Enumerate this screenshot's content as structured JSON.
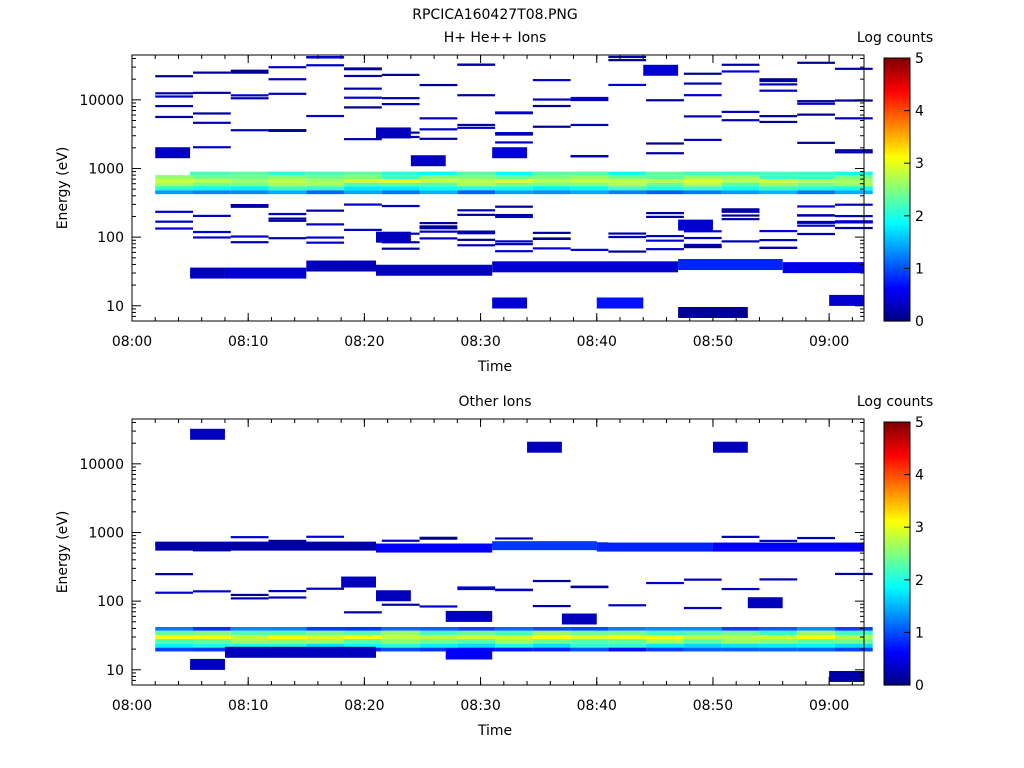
{
  "figure": {
    "title": "RPCICA160427T08.PNG"
  },
  "colorbar": {
    "label": "Log counts",
    "ticks": [
      "0",
      "1",
      "2",
      "3",
      "4",
      "5"
    ],
    "range": [
      0,
      5
    ],
    "colormap": "jet"
  },
  "chart_data": [
    {
      "type": "heatmap",
      "title": "H+ He++ Ions",
      "xlabel": "Time",
      "ylabel": "Energy (eV)",
      "x_ticks": [
        "08:00",
        "08:10",
        "08:20",
        "08:30",
        "08:40",
        "08:50",
        "09:00"
      ],
      "xlim": [
        "08:00",
        "09:03"
      ],
      "y_ticks": [
        "10",
        "100",
        "1000",
        "10000"
      ],
      "ylim": [
        6,
        45000
      ],
      "yscale": "log",
      "colorbar_label": "Log counts",
      "cells": [
        {
          "t0": "08:05",
          "t1": "08:08",
          "e": 30,
          "v": 0.3
        },
        {
          "t0": "08:08",
          "t1": "08:15",
          "e": 30,
          "v": 0.4
        },
        {
          "t0": "08:15",
          "t1": "08:21",
          "e": 38,
          "v": 0.3
        },
        {
          "t0": "08:21",
          "t1": "08:31",
          "e": 33,
          "v": 0.3
        },
        {
          "t0": "08:31",
          "t1": "08:47",
          "e": 37,
          "v": 0.4
        },
        {
          "t0": "08:47",
          "t1": "08:56",
          "e": 40,
          "v": 0.8
        },
        {
          "t0": "08:56",
          "t1": "09:03",
          "e": 36,
          "v": 0.5
        },
        {
          "t0": "08:31",
          "t1": "08:34",
          "e": 11,
          "v": 0.4
        },
        {
          "t0": "08:40",
          "t1": "08:44",
          "e": 11,
          "v": 0.7
        },
        {
          "t0": "08:47",
          "t1": "08:53",
          "e": 8,
          "v": 0.1
        },
        {
          "t0": "09:00",
          "t1": "09:03",
          "e": 12,
          "v": 0.4
        },
        {
          "t0": "08:02",
          "t1": "08:05",
          "e": 1700,
          "v": 0.3
        },
        {
          "t0": "08:21",
          "t1": "08:24",
          "e": 3300,
          "v": 0.3
        },
        {
          "t0": "08:31",
          "t1": "08:34",
          "e": 1700,
          "v": 0.4
        },
        {
          "t0": "08:44",
          "t1": "08:47",
          "e": 27000,
          "v": 0.4
        },
        {
          "t0": "08:47",
          "t1": "08:50",
          "e": 150,
          "v": 0.4
        },
        {
          "t0": "08:21",
          "t1": "08:24",
          "e": 100,
          "v": 0.3
        },
        {
          "t0": "08:24",
          "t1": "08:27",
          "e": 1300,
          "v": 0.3
        }
      ],
      "band": [
        {
          "e": 900,
          "v": 2.1
        },
        {
          "e": 800,
          "v": 2.4
        },
        {
          "e": 700,
          "v": 2.8
        },
        {
          "e": 620,
          "v": 2.5
        },
        {
          "e": 550,
          "v": 2.0
        },
        {
          "e": 480,
          "v": 1.3
        }
      ]
    },
    {
      "type": "heatmap",
      "title": "Other Ions",
      "xlabel": "Time",
      "ylabel": "Energy (eV)",
      "x_ticks": [
        "08:00",
        "08:10",
        "08:20",
        "08:30",
        "08:40",
        "08:50",
        "09:00"
      ],
      "xlim": [
        "08:00",
        "09:03"
      ],
      "y_ticks": [
        "10",
        "100",
        "1000",
        "10000"
      ],
      "ylim": [
        6,
        45000
      ],
      "yscale": "log",
      "colorbar_label": "Log counts",
      "cells": [
        {
          "t0": "08:05",
          "t1": "08:08",
          "e": 12,
          "v": 0.3
        },
        {
          "t0": "08:08",
          "t1": "08:21",
          "e": 18,
          "v": 0.3
        },
        {
          "t0": "08:27",
          "t1": "08:31",
          "e": 17,
          "v": 0.6
        },
        {
          "t0": "09:00",
          "t1": "09:03",
          "e": 8,
          "v": 0.2
        },
        {
          "t0": "08:21",
          "t1": "08:24",
          "e": 120,
          "v": 0.3
        },
        {
          "t0": "08:27",
          "t1": "08:31",
          "e": 60,
          "v": 0.3
        },
        {
          "t0": "08:37",
          "t1": "08:40",
          "e": 55,
          "v": 0.3
        },
        {
          "t0": "08:53",
          "t1": "08:56",
          "e": 95,
          "v": 0.3
        },
        {
          "t0": "08:18",
          "t1": "08:21",
          "e": 190,
          "v": 0.3
        },
        {
          "t0": "08:05",
          "t1": "08:08",
          "e": 27000,
          "v": 0.3
        },
        {
          "t0": "08:34",
          "t1": "08:37",
          "e": 17500,
          "v": 0.3
        },
        {
          "t0": "08:50",
          "t1": "08:53",
          "e": 17500,
          "v": 0.3
        }
      ],
      "upper_band": [
        {
          "t0": "08:02",
          "t1": "08:21",
          "e": 640,
          "v": 0.2
        },
        {
          "t0": "08:21",
          "t1": "08:31",
          "e": 600,
          "v": 0.6
        },
        {
          "t0": "08:31",
          "t1": "08:40",
          "e": 650,
          "v": 0.9
        },
        {
          "t0": "08:40",
          "t1": "08:50",
          "e": 620,
          "v": 0.8
        },
        {
          "t0": "08:50",
          "t1": "09:03",
          "e": 620,
          "v": 0.6
        }
      ],
      "band": [
        {
          "e": 42,
          "v": 1.1
        },
        {
          "e": 37,
          "v": 2.4
        },
        {
          "e": 32,
          "v": 2.9
        },
        {
          "e": 28,
          "v": 2.5
        },
        {
          "e": 24,
          "v": 1.9
        },
        {
          "e": 21,
          "v": 0.9
        }
      ]
    }
  ]
}
